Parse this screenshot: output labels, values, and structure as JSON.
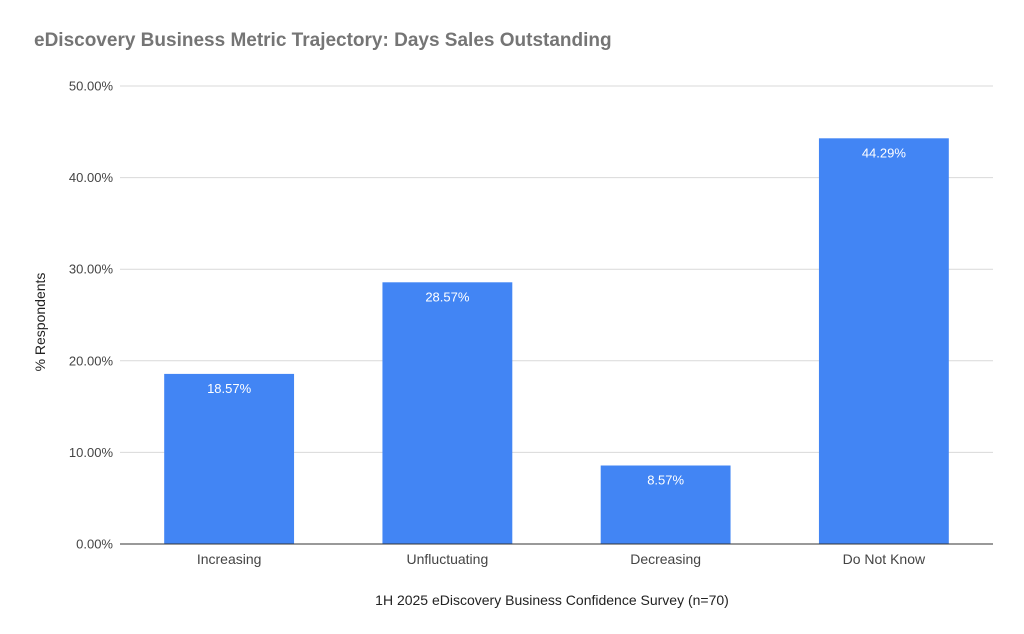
{
  "chart_data": {
    "type": "bar",
    "title": "eDiscovery Business Metric Trajectory: Days Sales Outstanding",
    "xlabel": "1H 2025 eDiscovery Business Confidence Survey (n=70)",
    "ylabel": "% Respondents",
    "categories": [
      "Increasing",
      "Unfluctuating",
      "Decreasing",
      "Do Not Know"
    ],
    "values": [
      18.57,
      28.57,
      8.57,
      44.29
    ],
    "data_labels": [
      "18.57%",
      "28.57%",
      "8.57%",
      "44.29%"
    ],
    "ylim": [
      0,
      50
    ],
    "yticks": [
      0,
      10,
      20,
      30,
      40,
      50
    ],
    "ytick_labels": [
      "0.00%",
      "10.00%",
      "20.00%",
      "30.00%",
      "40.00%",
      "50.00%"
    ],
    "grid": true,
    "legend": "none",
    "colors": {
      "bar": "#4285F4",
      "grid": "#d9d9d9",
      "axis": "#333333"
    }
  }
}
